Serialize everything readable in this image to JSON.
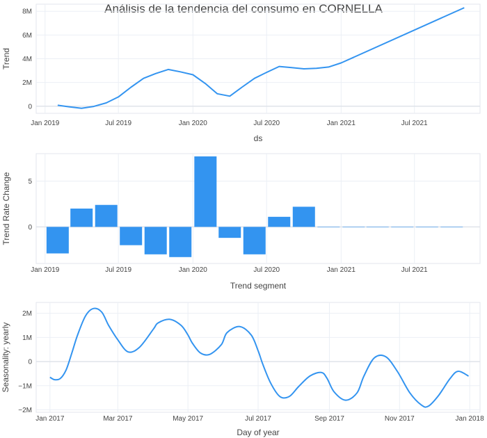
{
  "title": "Análisis de la tendencia del consumo en CORNELLA",
  "chart_data": [
    {
      "type": "line",
      "xlabel": "ds",
      "ylabel": "Trend",
      "x_ticks": [
        "Jan 2019",
        "Jul 2019",
        "Jan 2020",
        "Jul 2020",
        "Jan 2021",
        "Jul 2021"
      ],
      "y_ticks": [
        "0",
        "2M",
        "4M",
        "6M",
        "8M"
      ],
      "series": [
        {
          "x": [
            "2019-02-01",
            "2019-03-01",
            "2019-04-01",
            "2019-05-01",
            "2019-06-01",
            "2019-07-01",
            "2019-08-01",
            "2019-09-01",
            "2019-10-01",
            "2019-11-01",
            "2019-12-01",
            "2020-01-01",
            "2020-02-01",
            "2020-03-01",
            "2020-04-01",
            "2020-05-01",
            "2020-06-01",
            "2020-07-01",
            "2020-08-01",
            "2020-09-01",
            "2020-10-01",
            "2020-11-01",
            "2020-12-01",
            "2021-01-01",
            "2021-11-01"
          ],
          "values": [
            80000,
            -50000,
            -180000,
            -20000,
            280000,
            780000,
            1600000,
            2350000,
            2750000,
            3100000,
            2900000,
            2650000,
            1900000,
            1050000,
            850000,
            1600000,
            2350000,
            2850000,
            3350000,
            3250000,
            3150000,
            3200000,
            3300000,
            3650000,
            8300000
          ],
          "color": "#3394f0"
        }
      ],
      "xlim": [
        "2018-12-10",
        "2021-12-10"
      ],
      "ylim": [
        -600000,
        8600000
      ]
    },
    {
      "type": "bar",
      "xlabel": "Trend segment",
      "ylabel": "Trend Rate Change",
      "x_ticks": [
        "Jan 2019",
        "Jul 2019",
        "Jan 2020",
        "Jul 2020",
        "Jan 2021",
        "Jul 2021"
      ],
      "y_ticks": [
        "0",
        "5"
      ],
      "series": [
        {
          "x": [
            "2019-02-01",
            "2019-04-01",
            "2019-06-01",
            "2019-08-01",
            "2019-10-01",
            "2019-12-01",
            "2020-02-01",
            "2020-04-01",
            "2020-06-01",
            "2020-08-01",
            "2020-10-01",
            "2020-12-01",
            "2021-02-01",
            "2021-04-01",
            "2021-06-01",
            "2021-08-01",
            "2021-10-01"
          ],
          "values": [
            -2.9,
            2.0,
            2.4,
            -2.0,
            -3.0,
            -3.3,
            7.7,
            -1.2,
            -3.0,
            1.1,
            2.2,
            0.0,
            0.0,
            0.0,
            0.0,
            0.0,
            0.0
          ],
          "color": "#3394f0"
        }
      ],
      "xlim": [
        "2018-12-10",
        "2021-12-10"
      ],
      "ylim": [
        -4.0,
        8.0
      ]
    },
    {
      "type": "line",
      "xlabel": "Day of year",
      "ylabel": "Seasonality: yearly",
      "x_ticks": [
        "Jan 2017",
        "Mar 2017",
        "May 2017",
        "Jul 2017",
        "Sep 2017",
        "Nov 2017",
        "Jan 2018"
      ],
      "y_ticks": [
        "−2M",
        "−1M",
        "0",
        "1M",
        "2M"
      ],
      "series": [
        {
          "x": [
            "2017-01-01",
            "2017-01-05",
            "2017-01-10",
            "2017-01-15",
            "2017-01-20",
            "2017-01-25",
            "2017-02-01",
            "2017-02-08",
            "2017-02-15",
            "2017-02-21",
            "2017-03-01",
            "2017-03-10",
            "2017-03-20",
            "2017-04-01",
            "2017-04-05",
            "2017-04-15",
            "2017-04-25",
            "2017-05-01",
            "2017-05-05",
            "2017-05-12",
            "2017-05-20",
            "2017-05-30",
            "2017-06-04",
            "2017-06-15",
            "2017-06-25",
            "2017-07-01",
            "2017-07-05",
            "2017-07-12",
            "2017-07-20",
            "2017-07-28",
            "2017-08-05",
            "2017-08-15",
            "2017-08-25",
            "2017-08-30",
            "2017-09-05",
            "2017-09-15",
            "2017-09-25",
            "2017-10-01",
            "2017-10-10",
            "2017-10-20",
            "2017-10-30",
            "2017-11-10",
            "2017-11-20",
            "2017-11-26",
            "2017-12-05",
            "2017-12-15",
            "2017-12-22",
            "2017-12-31"
          ],
          "values": [
            -650000,
            -750000,
            -700000,
            -350000,
            350000,
            1100000,
            1900000,
            2200000,
            2050000,
            1500000,
            900000,
            400000,
            600000,
            1350000,
            1600000,
            1750000,
            1500000,
            1100000,
            750000,
            350000,
            300000,
            700000,
            1200000,
            1450000,
            1100000,
            450000,
            -100000,
            -900000,
            -1450000,
            -1450000,
            -1050000,
            -600000,
            -450000,
            -700000,
            -1250000,
            -1600000,
            -1300000,
            -600000,
            150000,
            200000,
            -400000,
            -1300000,
            -1800000,
            -1850000,
            -1400000,
            -700000,
            -400000,
            -600000
          ],
          "color": "#3394f0"
        }
      ],
      "xlim": [
        "2016-12-20",
        "2018-01-10"
      ],
      "ylim": [
        -2100000,
        2450000
      ]
    }
  ]
}
